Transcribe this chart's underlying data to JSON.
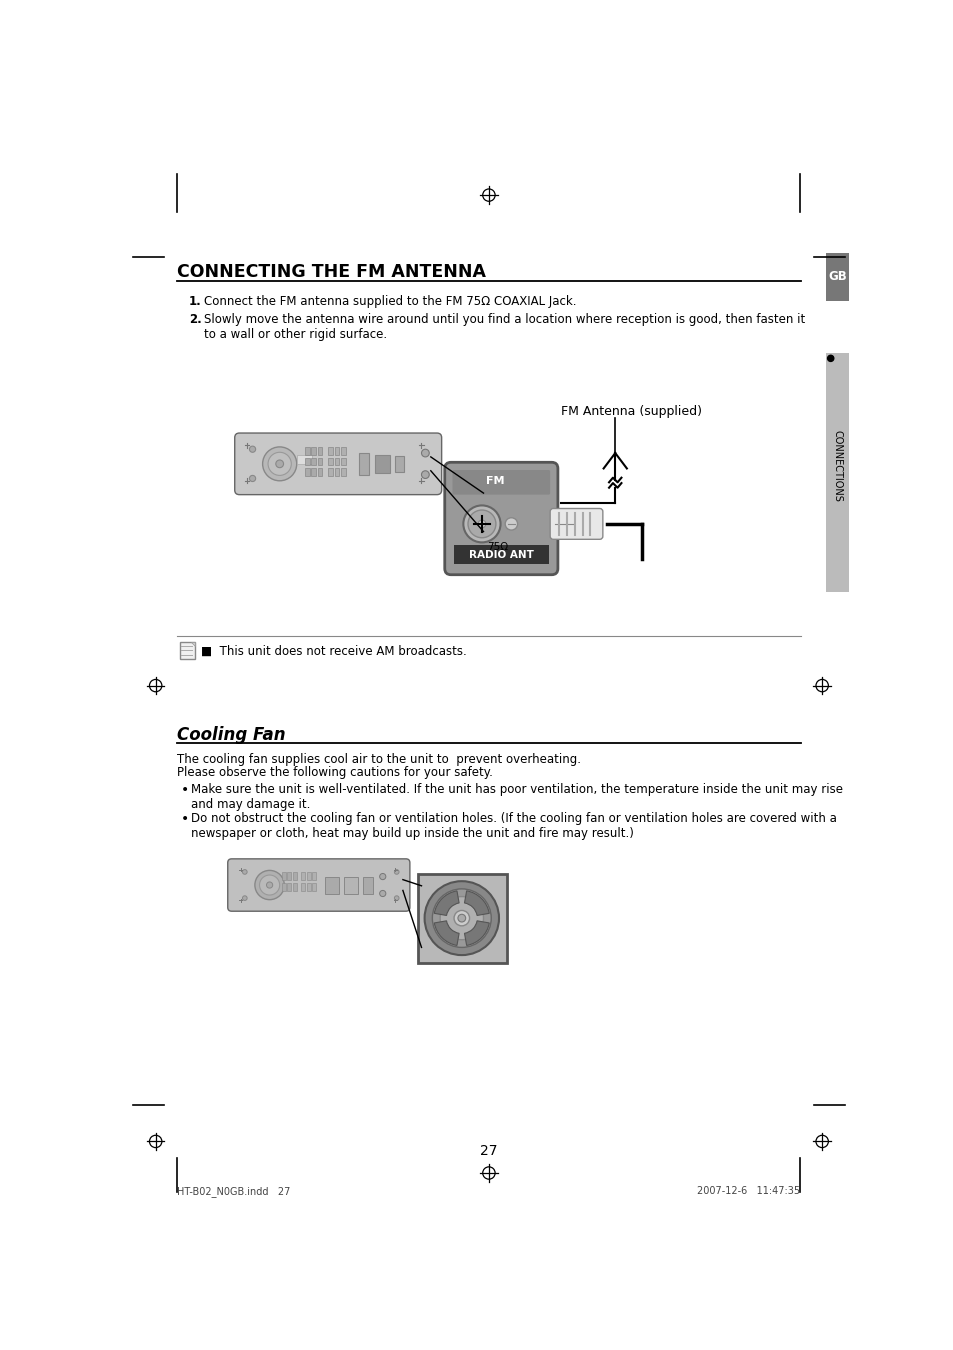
{
  "title1": "CONNECTING THE FM ANTENNA",
  "step1_num": "1.",
  "step1": "Connect the FM antenna supplied to the FM 75Ω COAXIAL Jack.",
  "step2_num": "2.",
  "step2": "Slowly move the antenna wire around until you find a location where reception is good, then fasten it\nto a wall or other rigid surface.",
  "fm_antenna_label": "FM Antenna (supplied)",
  "note_text": "■  This unit does not receive AM broadcasts.",
  "title2": "Cooling Fan",
  "para1_line1": "The cooling fan supplies cool air to the unit to  prevent overheating.",
  "para1_line2": "Please observe the following cautions for your safety.",
  "bullet1": "Make sure the unit is well-ventilated. If the unit has poor ventilation, the temperature inside the unit may rise\nand may damage it.",
  "bullet2": "Do not obstruct the cooling fan or ventilation holes. (If the cooling fan or ventilation holes are covered with a\nnewspaper or cloth, heat may build up inside the unit and fire may result.)",
  "page_number": "27",
  "footer_left": "HT-B02_N0GB.indd   27",
  "footer_right": "2007-12-6   11:47:35",
  "bg_color": "#ffffff"
}
